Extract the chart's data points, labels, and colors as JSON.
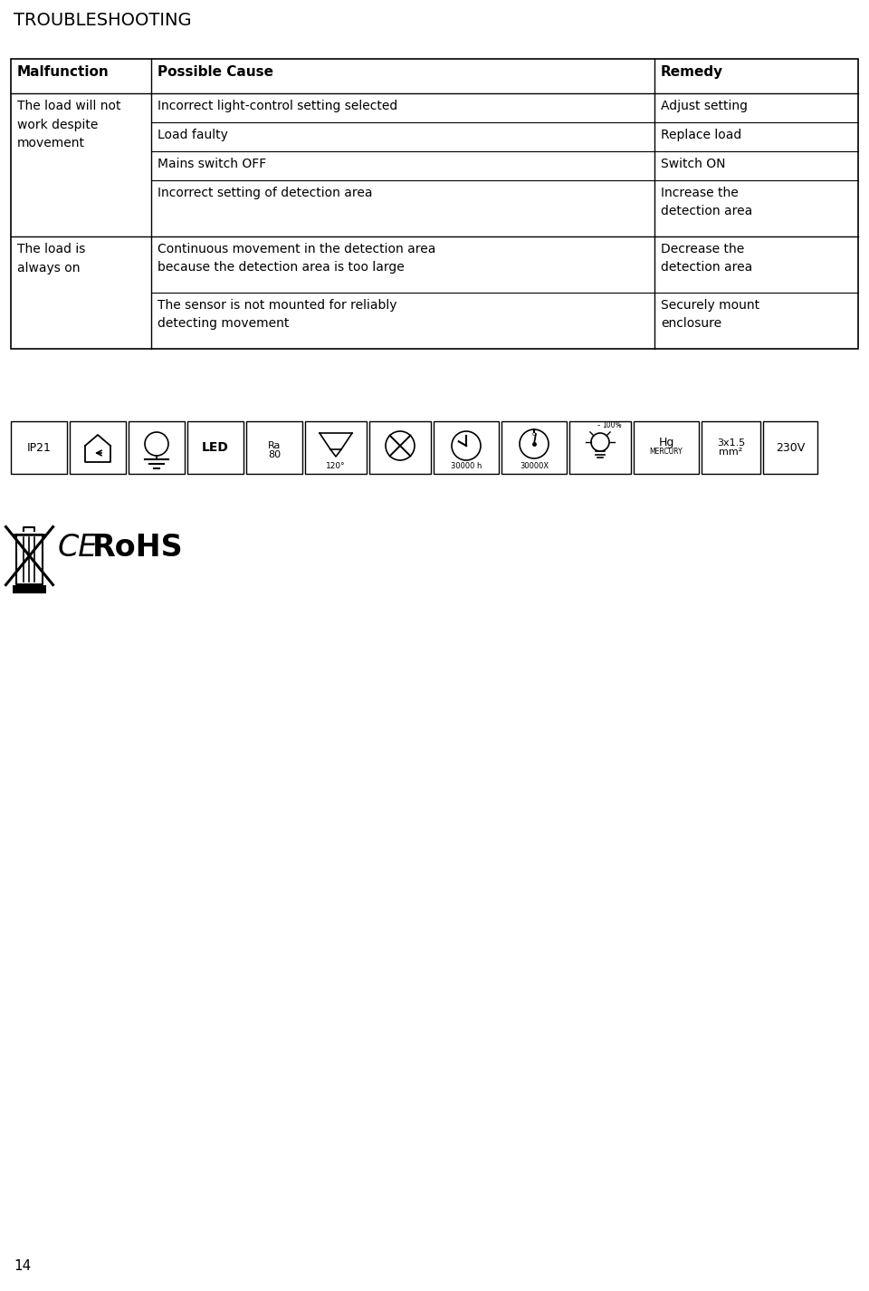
{
  "title": "TROUBLESHOOTING",
  "page_number": "14",
  "table_headers": [
    "Malfunction",
    "Possible Cause",
    "Remedy"
  ],
  "causes1": [
    "Incorrect light-control setting selected",
    "Load faulty",
    "Mains switch OFF",
    "Incorrect setting of detection area"
  ],
  "remedies1": [
    "Adjust setting",
    "Replace load",
    "Switch ON",
    "Increase the\ndetection area"
  ],
  "malfunction1": "The load will not\nwork despite\nmovement",
  "causes2": [
    "Continuous movement in the detection area\nbecause the detection area is too large",
    "The sensor is not mounted for reliably\ndetecting movement"
  ],
  "remedies2": [
    "Decrease the\ndetection area",
    "Securely mount\nenclosure"
  ],
  "malfunction2": "The load is\nalways on",
  "background": "#ffffff",
  "text_color": "#000000"
}
